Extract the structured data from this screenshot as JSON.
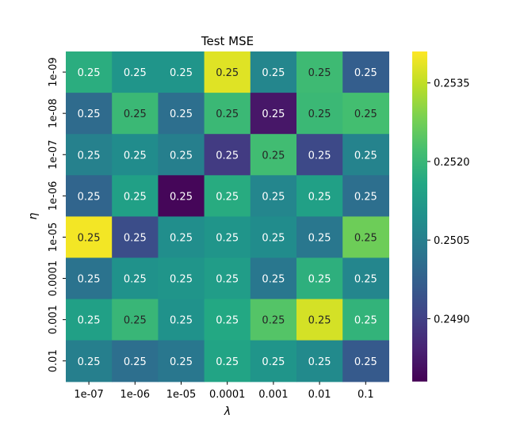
{
  "chart_data": {
    "type": "heatmap",
    "title": "Test MSE",
    "xlabel": "λ",
    "ylabel": "η",
    "x_categories": [
      "1e-07",
      "1e-06",
      "1e-05",
      "0.0001",
      "0.001",
      "0.01",
      "0.1"
    ],
    "y_categories": [
      "1e-09",
      "1e-08",
      "1e-07",
      "1e-06",
      "1e-05",
      "0.0001",
      "0.001",
      "0.01"
    ],
    "values": [
      [
        0.25175,
        0.2511,
        0.2511,
        0.2538,
        0.2507,
        0.2521,
        0.2497
      ],
      [
        0.25,
        0.25205,
        0.2501,
        0.25205,
        0.2482,
        0.25205,
        0.2522
      ],
      [
        0.25055,
        0.25085,
        0.2505,
        0.2489,
        0.25215,
        0.2492,
        0.2506
      ],
      [
        0.24985,
        0.2514,
        0.2479,
        0.2517,
        0.2507,
        0.2514,
        0.2501
      ],
      [
        0.254,
        0.2493,
        0.2509,
        0.2511,
        0.25085,
        0.2503,
        0.2527
      ],
      [
        0.2502,
        0.251,
        0.2511,
        0.2513,
        0.2503,
        0.2518,
        0.2507
      ],
      [
        0.2514,
        0.252,
        0.251,
        0.2516,
        0.2524,
        0.2537,
        0.2519
      ],
      [
        0.2505,
        0.2501,
        0.2503,
        0.2515,
        0.2511,
        0.2508,
        0.2496
      ]
    ],
    "cell_labels": [
      [
        "0.25",
        "0.25",
        "0.25",
        "0.25",
        "0.25",
        "0.25",
        "0.25"
      ],
      [
        "0.25",
        "0.25",
        "0.25",
        "0.25",
        "0.25",
        "0.25",
        "0.25"
      ],
      [
        "0.25",
        "0.25",
        "0.25",
        "0.25",
        "0.25",
        "0.25",
        "0.25"
      ],
      [
        "0.25",
        "0.25",
        "0.25",
        "0.25",
        "0.25",
        "0.25",
        "0.25"
      ],
      [
        "0.25",
        "0.25",
        "0.25",
        "0.25",
        "0.25",
        "0.25",
        "0.25"
      ],
      [
        "0.25",
        "0.25",
        "0.25",
        "0.25",
        "0.25",
        "0.25",
        "0.25"
      ],
      [
        "0.25",
        "0.25",
        "0.25",
        "0.25",
        "0.25",
        "0.25",
        "0.25"
      ],
      [
        "0.25",
        "0.25",
        "0.25",
        "0.25",
        "0.25",
        "0.25",
        "0.25"
      ]
    ],
    "colorbar": {
      "colormap": "viridis",
      "vmin": 0.2478,
      "vmax": 0.2541,
      "ticks": [
        0.249,
        0.2505,
        0.252,
        0.2535
      ],
      "tick_labels": [
        "0.2490",
        "0.2505",
        "0.2520",
        "0.2535"
      ]
    }
  }
}
